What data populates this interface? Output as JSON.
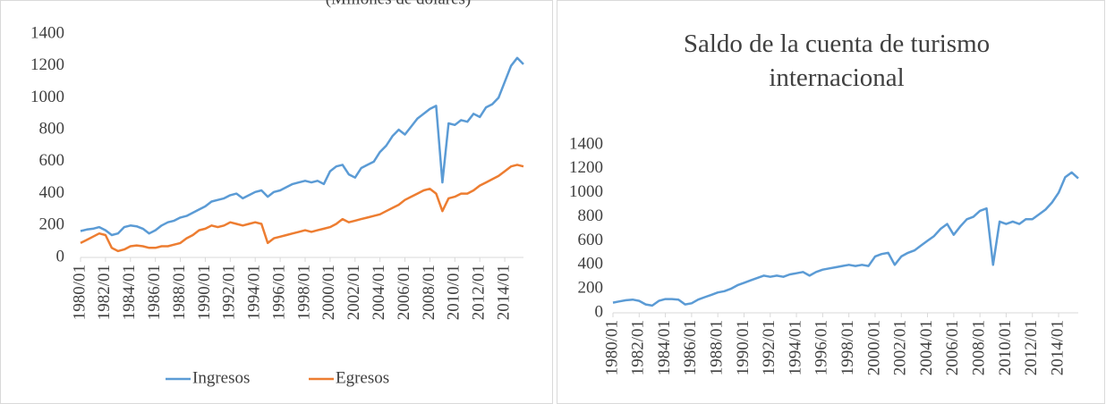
{
  "chart_data": [
    {
      "type": "line",
      "subtitle": "(Millones de dólares)",
      "categories": [
        "1980/01",
        null,
        null,
        null,
        "1982/01",
        null,
        null,
        null,
        "1984/01",
        null,
        null,
        null,
        "1986/01",
        null,
        null,
        null,
        "1988/01",
        null,
        null,
        null,
        "1990/01",
        null,
        null,
        null,
        "1992/01",
        null,
        null,
        null,
        "1994/01",
        null,
        null,
        null,
        "1996/01",
        null,
        null,
        null,
        "1998/01",
        null,
        null,
        null,
        "2000/01",
        null,
        null,
        null,
        "2002/01",
        null,
        null,
        null,
        "2004/01",
        null,
        null,
        null,
        "2006/01",
        null,
        null,
        null,
        "2008/01",
        null,
        null,
        null,
        "2010/01",
        null,
        null,
        null,
        "2012/01",
        null,
        null,
        null,
        "2014/01",
        null,
        null,
        null
      ],
      "series": [
        {
          "name": "Ingresos",
          "color": "#5b9bd5",
          "values": [
            165,
            175,
            180,
            190,
            170,
            140,
            150,
            190,
            200,
            195,
            180,
            150,
            170,
            200,
            220,
            230,
            250,
            260,
            280,
            300,
            320,
            350,
            360,
            370,
            390,
            400,
            370,
            390,
            410,
            420,
            380,
            410,
            420,
            440,
            460,
            470,
            480,
            470,
            480,
            460,
            540,
            570,
            580,
            520,
            500,
            560,
            580,
            600,
            660,
            700,
            760,
            800,
            770,
            820,
            870,
            900,
            930,
            950,
            470,
            840,
            830,
            860,
            850,
            900,
            880,
            940,
            960,
            1000,
            1100,
            1200,
            1250,
            1210
          ]
        },
        {
          "name": "Egresos",
          "color": "#ed7d31",
          "values": [
            90,
            110,
            130,
            150,
            140,
            60,
            40,
            50,
            70,
            75,
            70,
            60,
            60,
            70,
            70,
            80,
            90,
            120,
            140,
            170,
            180,
            200,
            190,
            200,
            220,
            210,
            200,
            210,
            220,
            210,
            90,
            120,
            130,
            140,
            150,
            160,
            170,
            160,
            170,
            180,
            190,
            210,
            240,
            220,
            230,
            240,
            250,
            260,
            270,
            290,
            310,
            330,
            360,
            380,
            400,
            420,
            430,
            400,
            290,
            370,
            380,
            400,
            400,
            420,
            450,
            470,
            490,
            510,
            540,
            570,
            580,
            570
          ]
        }
      ],
      "ylim": [
        0,
        1400
      ],
      "yticks": [
        0,
        200,
        400,
        600,
        800,
        1000,
        1200,
        1400
      ],
      "legend": "bottom"
    },
    {
      "type": "line",
      "title": "Saldo de la cuenta de turismo internacional",
      "categories": [
        "1980/01",
        null,
        null,
        null,
        "1982/01",
        null,
        null,
        null,
        "1984/01",
        null,
        null,
        null,
        "1986/01",
        null,
        null,
        null,
        "1988/01",
        null,
        null,
        null,
        "1990/01",
        null,
        null,
        null,
        "1992/01",
        null,
        null,
        null,
        "1994/01",
        null,
        null,
        null,
        "1996/01",
        null,
        null,
        null,
        "1998/01",
        null,
        null,
        null,
        "2000/01",
        null,
        null,
        null,
        "2002/01",
        null,
        null,
        null,
        "2004/01",
        null,
        null,
        null,
        "2006/01",
        null,
        null,
        null,
        "2008/01",
        null,
        null,
        null,
        "2010/01",
        null,
        null,
        null,
        "2012/01",
        null,
        null,
        null,
        "2014/01",
        null,
        null,
        null
      ],
      "color": "#5b9bd5",
      "values": [
        85,
        95,
        105,
        110,
        100,
        70,
        60,
        100,
        115,
        115,
        110,
        70,
        80,
        110,
        130,
        150,
        170,
        180,
        200,
        230,
        250,
        270,
        290,
        310,
        300,
        310,
        300,
        320,
        330,
        340,
        310,
        340,
        360,
        370,
        380,
        390,
        400,
        390,
        400,
        390,
        470,
        490,
        500,
        400,
        470,
        500,
        520,
        560,
        600,
        640,
        700,
        740,
        650,
        720,
        780,
        800,
        850,
        870,
        400,
        760,
        740,
        760,
        740,
        780,
        780,
        820,
        860,
        920,
        1000,
        1130,
        1170,
        1120
      ],
      "ylim": [
        0,
        1400
      ],
      "yticks": [
        0,
        200,
        400,
        600,
        800,
        1000,
        1200,
        1400
      ]
    }
  ]
}
